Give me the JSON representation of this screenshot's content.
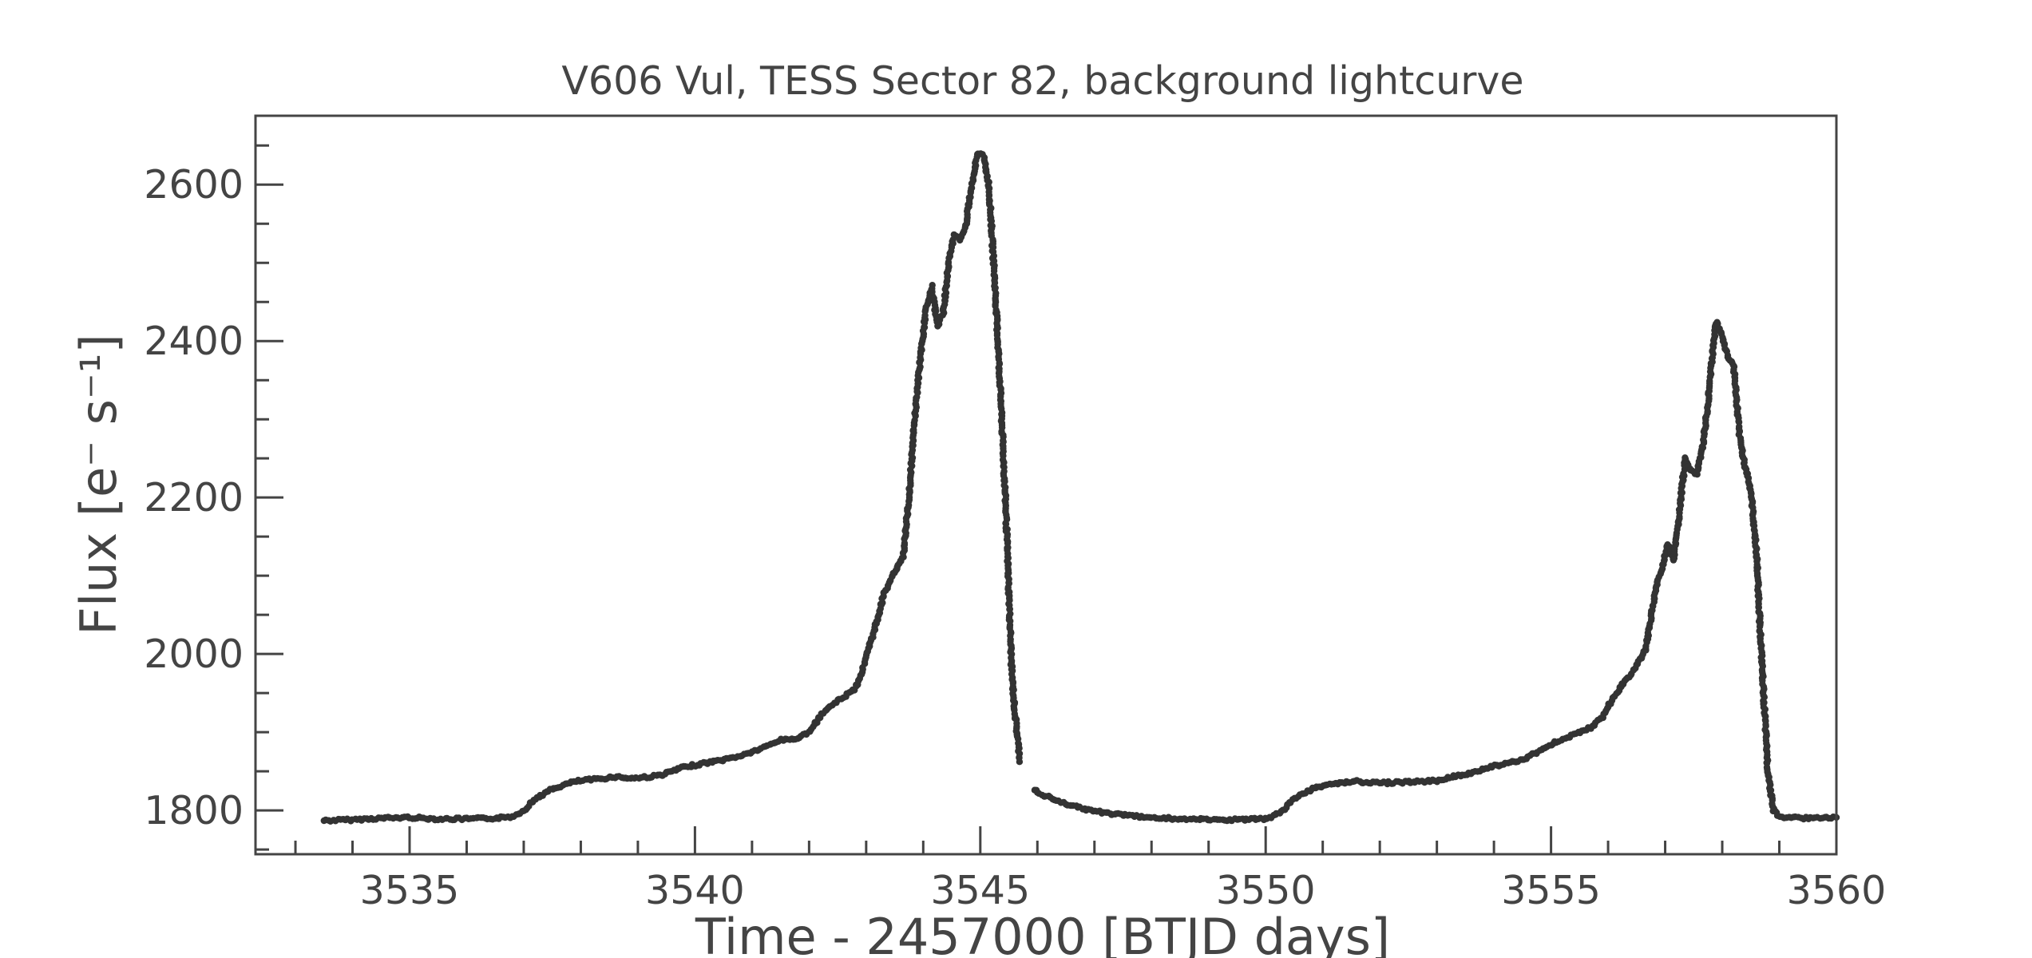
{
  "chart_data": {
    "type": "scatter",
    "title": "V606 Vul, TESS Sector 82, background lightcurve",
    "xlabel": "Time - 2457000 [BTJD days]",
    "ylabel": "Flux [e⁻ s⁻¹]",
    "xlim": [
      3532.3,
      3560.0
    ],
    "ylim": [
      1744,
      2688
    ],
    "x_ticks": [
      3535,
      3540,
      3545,
      3550,
      3555,
      3560
    ],
    "x_tick_labels": [
      "3535",
      "3540",
      "3545",
      "3550",
      "3555",
      "3560"
    ],
    "y_ticks": [
      1800,
      2000,
      2200,
      2400,
      2600
    ],
    "y_tick_labels": [
      "1800",
      "2000",
      "2200",
      "2400",
      "2600"
    ],
    "grid": false,
    "marker_color": "#333333",
    "series": [
      {
        "points": [
          [
            3533.5,
            1787
          ],
          [
            3534.0,
            1788
          ],
          [
            3534.5,
            1790
          ],
          [
            3535.0,
            1791
          ],
          [
            3535.5,
            1789
          ],
          [
            3536.0,
            1789
          ],
          [
            3536.5,
            1790
          ],
          [
            3536.8,
            1792
          ],
          [
            3537.0,
            1800
          ],
          [
            3537.2,
            1815
          ],
          [
            3537.5,
            1827
          ],
          [
            3537.8,
            1835
          ],
          [
            3538.0,
            1838
          ],
          [
            3538.3,
            1840
          ],
          [
            3538.6,
            1843
          ],
          [
            3538.9,
            1841
          ],
          [
            3539.2,
            1843
          ],
          [
            3539.4,
            1845
          ],
          [
            3539.6,
            1850
          ],
          [
            3539.8,
            1855
          ],
          [
            3540.0,
            1858
          ],
          [
            3540.3,
            1862
          ],
          [
            3540.6,
            1866
          ],
          [
            3540.9,
            1872
          ],
          [
            3541.2,
            1880
          ],
          [
            3541.5,
            1890
          ],
          [
            3541.8,
            1892
          ],
          [
            3542.0,
            1900
          ],
          [
            3542.2,
            1920
          ],
          [
            3542.4,
            1935
          ],
          [
            3542.6,
            1945
          ],
          [
            3542.8,
            1955
          ],
          [
            3542.9,
            1972
          ],
          [
            3543.0,
            1995
          ],
          [
            3543.1,
            2020
          ],
          [
            3543.2,
            2045
          ],
          [
            3543.3,
            2075
          ],
          [
            3543.4,
            2090
          ],
          [
            3543.5,
            2105
          ],
          [
            3543.55,
            2110
          ],
          [
            3543.65,
            2125
          ],
          [
            3543.75,
            2200
          ],
          [
            3543.85,
            2300
          ],
          [
            3543.95,
            2380
          ],
          [
            3544.05,
            2440
          ],
          [
            3544.15,
            2470
          ],
          [
            3544.25,
            2420
          ],
          [
            3544.35,
            2435
          ],
          [
            3544.45,
            2505
          ],
          [
            3544.55,
            2535
          ],
          [
            3544.65,
            2530
          ],
          [
            3544.75,
            2550
          ],
          [
            3544.85,
            2600
          ],
          [
            3544.95,
            2640
          ],
          [
            3545.05,
            2638
          ],
          [
            3545.15,
            2600
          ],
          [
            3545.25,
            2480
          ],
          [
            3545.35,
            2340
          ],
          [
            3545.45,
            2180
          ],
          [
            3545.55,
            1980
          ],
          [
            3545.6,
            1930
          ],
          [
            3545.7,
            1860
          ],
          [
            3545.8,
            1842
          ],
          [
            3545.9,
            1835
          ],
          [
            3546.0,
            1822
          ],
          [
            3546.3,
            1814
          ],
          [
            3546.6,
            1806
          ],
          [
            3546.9,
            1800
          ],
          [
            3547.2,
            1797
          ],
          [
            3547.5,
            1794
          ],
          [
            3548.0,
            1791
          ],
          [
            3548.5,
            1789
          ],
          [
            3549.0,
            1788
          ],
          [
            3549.5,
            1788
          ],
          [
            3550.0,
            1789
          ],
          [
            3550.1,
            1791
          ],
          [
            3550.3,
            1800
          ],
          [
            3550.5,
            1815
          ],
          [
            3550.8,
            1827
          ],
          [
            3551.0,
            1832
          ],
          [
            3551.3,
            1835
          ],
          [
            3551.6,
            1837
          ],
          [
            3552.0,
            1835
          ],
          [
            3552.4,
            1836
          ],
          [
            3552.7,
            1837
          ],
          [
            3553.0,
            1838
          ],
          [
            3553.3,
            1843
          ],
          [
            3553.6,
            1848
          ],
          [
            3553.9,
            1855
          ],
          [
            3554.2,
            1860
          ],
          [
            3554.5,
            1865
          ],
          [
            3554.8,
            1876
          ],
          [
            3555.1,
            1888
          ],
          [
            3555.4,
            1897
          ],
          [
            3555.7,
            1906
          ],
          [
            3555.9,
            1920
          ],
          [
            3556.1,
            1945
          ],
          [
            3556.3,
            1965
          ],
          [
            3556.5,
            1985
          ],
          [
            3556.65,
            2005
          ],
          [
            3556.75,
            2045
          ],
          [
            3556.85,
            2090
          ],
          [
            3556.95,
            2110
          ],
          [
            3557.05,
            2140
          ],
          [
            3557.15,
            2120
          ],
          [
            3557.25,
            2180
          ],
          [
            3557.35,
            2250
          ],
          [
            3557.45,
            2235
          ],
          [
            3557.55,
            2230
          ],
          [
            3557.65,
            2260
          ],
          [
            3557.75,
            2320
          ],
          [
            3557.85,
            2400
          ],
          [
            3557.9,
            2425
          ],
          [
            3558.0,
            2405
          ],
          [
            3558.1,
            2380
          ],
          [
            3558.2,
            2370
          ],
          [
            3558.3,
            2280
          ],
          [
            3558.4,
            2240
          ],
          [
            3558.5,
            2210
          ],
          [
            3558.6,
            2130
          ],
          [
            3558.7,
            1980
          ],
          [
            3558.8,
            1850
          ],
          [
            3558.9,
            1800
          ],
          [
            3559.0,
            1792
          ],
          [
            3559.5,
            1790
          ],
          [
            3560.0,
            1791
          ]
        ]
      }
    ]
  }
}
